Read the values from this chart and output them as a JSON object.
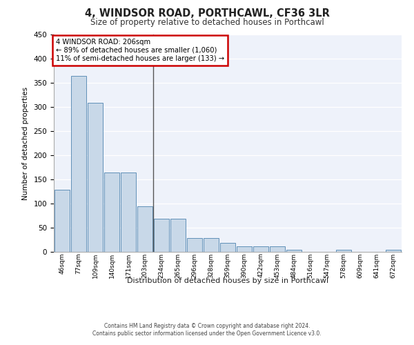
{
  "title": "4, WINDSOR ROAD, PORTHCAWL, CF36 3LR",
  "subtitle": "Size of property relative to detached houses in Porthcawl",
  "xlabel": "Distribution of detached houses by size in Porthcawl",
  "ylabel": "Number of detached properties",
  "bin_labels": [
    "46sqm",
    "77sqm",
    "109sqm",
    "140sqm",
    "171sqm",
    "203sqm",
    "234sqm",
    "265sqm",
    "296sqm",
    "328sqm",
    "359sqm",
    "390sqm",
    "422sqm",
    "453sqm",
    "484sqm",
    "516sqm",
    "547sqm",
    "578sqm",
    "609sqm",
    "641sqm",
    "672sqm"
  ],
  "bar_values": [
    128,
    365,
    308,
    165,
    165,
    95,
    68,
    68,
    28,
    28,
    18,
    12,
    12,
    12,
    5,
    0,
    0,
    5,
    0,
    0,
    5
  ],
  "bar_color": "#c8d8e8",
  "bar_edge_color": "#6090b8",
  "property_line_x": 5,
  "property_line_label": "4 WINDSOR ROAD: 206sqm",
  "annotation_line1": "← 89% of detached houses are smaller (1,060)",
  "annotation_line2": "11% of semi-detached houses are larger (133) →",
  "annotation_box_color": "#ffffff",
  "annotation_box_edge_color": "#cc0000",
  "vline_color": "#555555",
  "ylim": [
    0,
    450
  ],
  "yticks": [
    0,
    50,
    100,
    150,
    200,
    250,
    300,
    350,
    400,
    450
  ],
  "background_color": "#eef2fa",
  "footer_line1": "Contains HM Land Registry data © Crown copyright and database right 2024.",
  "footer_line2": "Contains public sector information licensed under the Open Government Licence v3.0."
}
